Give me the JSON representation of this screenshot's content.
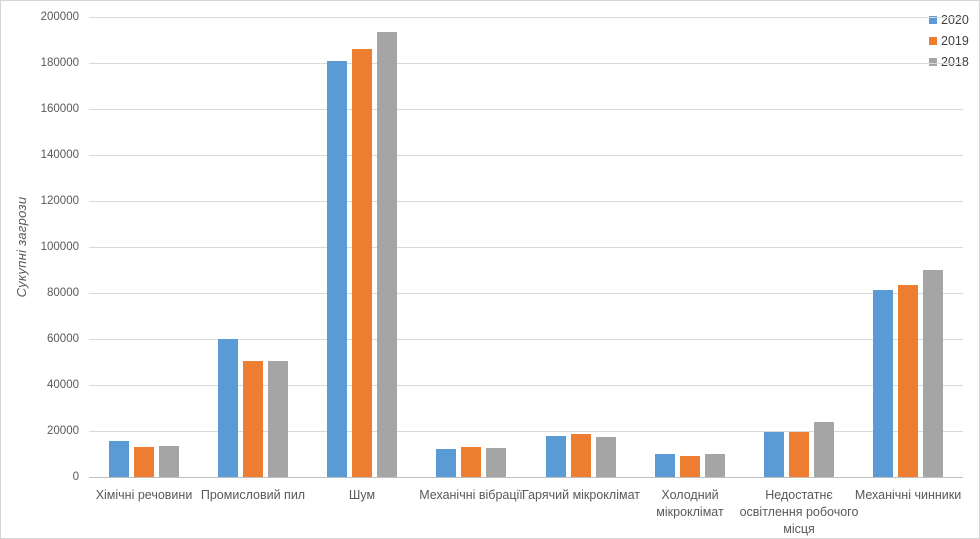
{
  "chart_data": {
    "type": "bar",
    "title": "",
    "xlabel": "",
    "ylabel": "Сукупні загрози",
    "ylim": [
      0,
      200000
    ],
    "ytick_step": 20000,
    "grid": true,
    "legend_position": "top-right",
    "categories": [
      "Хімічні речовини",
      "Промисловий пил",
      "Шум",
      "Механічні вібрації",
      "Гарячий мікроклімат",
      "Холодний\nмікроклімат",
      "Недостатнє\nосвітлення робочого\nмісця",
      "Механічні чинники"
    ],
    "series": [
      {
        "name": "2020",
        "color": "#5B9BD5",
        "values": [
          15500,
          60000,
          181000,
          12000,
          18000,
          10000,
          19500,
          81500
        ]
      },
      {
        "name": "2019",
        "color": "#ED7D31",
        "values": [
          13000,
          50500,
          186000,
          13000,
          18500,
          9000,
          19500,
          83500
        ]
      },
      {
        "name": "2018",
        "color": "#A5A5A5",
        "values": [
          13500,
          50500,
          193500,
          12500,
          17500,
          10000,
          23800,
          90000
        ]
      }
    ]
  },
  "colors": {
    "gridline": "#d9d9d9",
    "axis_line": "#bfbfbf",
    "tick_text": "#595959",
    "legend_text": "#404040",
    "border": "#d6d6d6"
  }
}
